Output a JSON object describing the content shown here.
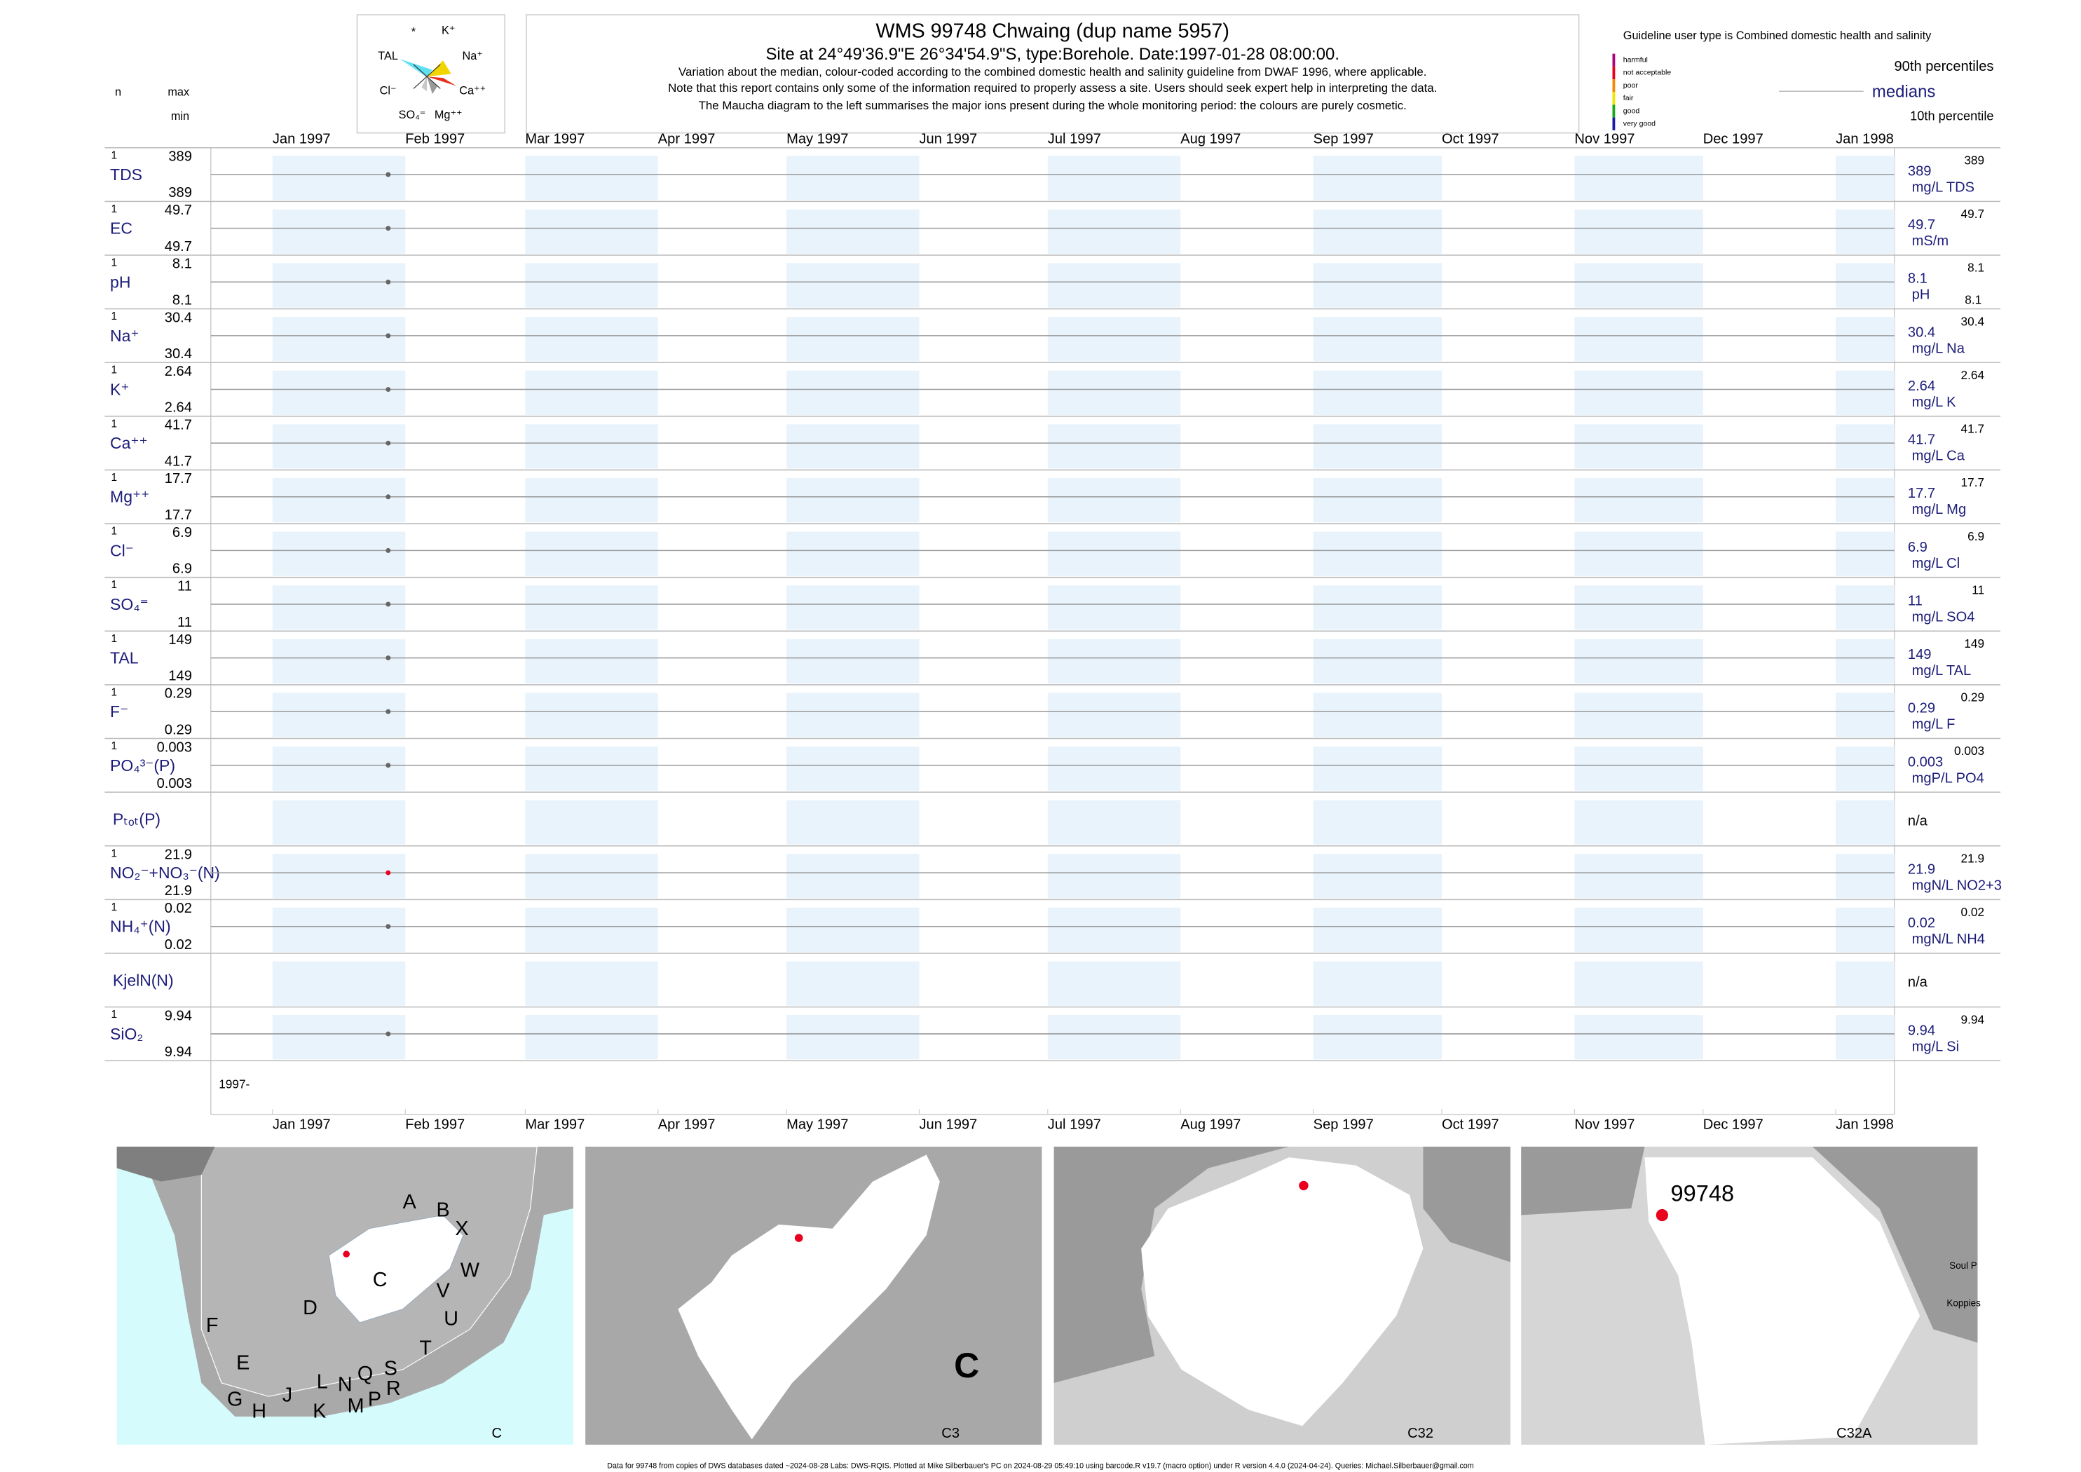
{
  "maucha": {
    "labels": [
      "*",
      "K⁺",
      "TAL",
      "Na⁺",
      "Cl⁻",
      "Ca⁺⁺",
      "SO₄⁼",
      "Mg⁺⁺"
    ]
  },
  "header": {
    "title": "WMS 99748  Chwaing (dup name 5957)",
    "subtitle": "Site at 24°49'36.9\"E 26°34'54.9\"S, type:Borehole. Date:1997-01-28 08:00:00.",
    "notes": [
      "Variation about the median,  colour-coded according to the combined domestic health and salinity guideline from DWAF 1996, where applicable.",
      "Note that this report contains only some of the information required to properly assess a site. Users should seek expert help in interpreting the data.",
      "The Maucha diagram to the left summarises the major ions present during the whole monitoring period: the colours are purely cosmetic."
    ]
  },
  "guideline": {
    "title": "Guideline user type is Combined domestic health and salinity",
    "classes": [
      {
        "label": "harmful",
        "color": "#b0007a"
      },
      {
        "label": "not acceptable",
        "color": "#e8001c"
      },
      {
        "label": "poor",
        "color": "#f58a00"
      },
      {
        "label": "fair",
        "color": "#f2e600"
      },
      {
        "label": "good",
        "color": "#19a81e"
      },
      {
        "label": "very good",
        "color": "#1a1aa8"
      }
    ]
  },
  "legend": {
    "p90": "90th percentiles",
    "median": "medians",
    "p10": "10th percentile"
  },
  "column_heads": {
    "n": "n",
    "max": "max",
    "min": "min"
  },
  "chart_data": {
    "type": "strip",
    "x": [
      "1997-01-28"
    ],
    "xticks": [
      {
        "value": "1997-01",
        "label": "Jan 1997"
      },
      {
        "value": "1997-02",
        "label": "Feb 1997"
      },
      {
        "value": "1997-03",
        "label": "Mar 1997"
      },
      {
        "value": "1997-04",
        "label": "Apr 1997"
      },
      {
        "value": "1997-05",
        "label": "May 1997"
      },
      {
        "value": "1997-06",
        "label": "Jun 1997"
      },
      {
        "value": "1997-07",
        "label": "Jul 1997"
      },
      {
        "value": "1997-08",
        "label": "Aug 1997"
      },
      {
        "value": "1997-09",
        "label": "Sep 1997"
      },
      {
        "value": "1997-10",
        "label": "Oct 1997"
      },
      {
        "value": "1997-11",
        "label": "Nov 1997"
      },
      {
        "value": "1997-12",
        "label": "Dec 1997"
      },
      {
        "value": "1998-01",
        "label": "Jan 1998"
      }
    ],
    "year_label": "1997-",
    "band_color": "#e8f3fc",
    "rows": [
      {
        "label": "TDS",
        "n": 1,
        "max": 389,
        "min": 389,
        "median": 389,
        "unit": "mg/L TDS",
        "p90": 389,
        "values": [
          389
        ],
        "color": "#666666"
      },
      {
        "label": "EC",
        "n": 1,
        "max": 49.7,
        "min": 49.7,
        "median": 49.7,
        "unit": "mS/m",
        "p90": 49.7,
        "values": [
          49.7
        ],
        "color": "#666666"
      },
      {
        "label": "pH",
        "n": 1,
        "max": 8.1,
        "min": 8.1,
        "median": 8.1,
        "unit": "pH",
        "p90": 8.1,
        "p10": 8.1,
        "values": [
          8.1
        ],
        "color": "#666666"
      },
      {
        "label": "Na⁺",
        "n": 1,
        "max": 30.4,
        "min": 30.4,
        "median": 30.4,
        "unit": "mg/L Na",
        "p90": 30.4,
        "values": [
          30.4
        ],
        "color": "#666666"
      },
      {
        "label": "K⁺",
        "n": 1,
        "max": 2.64,
        "min": 2.64,
        "median": 2.64,
        "unit": "mg/L K",
        "p90": 2.64,
        "values": [
          2.64
        ],
        "color": "#666666"
      },
      {
        "label": "Ca⁺⁺",
        "n": 1,
        "max": 41.7,
        "min": 41.7,
        "median": 41.7,
        "unit": "mg/L Ca",
        "p90": 41.7,
        "values": [
          41.7
        ],
        "color": "#666666"
      },
      {
        "label": "Mg⁺⁺",
        "n": 1,
        "max": 17.7,
        "min": 17.7,
        "median": 17.7,
        "unit": "mg/L Mg",
        "p90": 17.7,
        "values": [
          17.7
        ],
        "color": "#666666"
      },
      {
        "label": "Cl⁻",
        "n": 1,
        "max": 6.9,
        "min": 6.9,
        "median": 6.9,
        "unit": "mg/L Cl",
        "p90": 6.9,
        "values": [
          6.9
        ],
        "color": "#666666"
      },
      {
        "label": "SO₄⁼",
        "n": 1,
        "max": 11,
        "min": 11,
        "median": 11,
        "unit": "mg/L SO4",
        "p90": 11,
        "values": [
          11
        ],
        "color": "#666666"
      },
      {
        "label": "TAL",
        "n": 1,
        "max": 149,
        "min": 149,
        "median": 149,
        "unit": "mg/L TAL",
        "p90": 149,
        "values": [
          149
        ],
        "color": "#666666"
      },
      {
        "label": "F⁻",
        "n": 1,
        "max": 0.29,
        "min": 0.29,
        "median": 0.29,
        "unit": "mg/L F",
        "p90": 0.29,
        "values": [
          0.29
        ],
        "color": "#666666"
      },
      {
        "label": "PO₄³⁻(P)",
        "n": 1,
        "max": 0.003,
        "min": 0.003,
        "median": 0.003,
        "unit": "mgP/L PO4",
        "p90": 0.003,
        "values": [
          0.003
        ],
        "color": "#666666"
      },
      {
        "label": "Pₜₒₜ(P)",
        "status": "n/a",
        "values": [
          null
        ]
      },
      {
        "label": "NO₂⁻+NO₃⁻(N)",
        "n": 1,
        "max": 21.9,
        "min": 21.9,
        "median": 21.9,
        "unit": "mgN/L NO2+3",
        "p90": 21.9,
        "values": [
          21.9
        ],
        "color": "#e8001c"
      },
      {
        "label": "NH₄⁺(N)",
        "n": 1,
        "max": 0.02,
        "min": 0.02,
        "median": 0.02,
        "unit": "mgN/L NH4",
        "p90": 0.02,
        "values": [
          0.02
        ],
        "color": "#666666"
      },
      {
        "label": "KjelN(N)",
        "status": "n/a",
        "values": [
          null
        ]
      },
      {
        "label": "SiO₂",
        "n": 1,
        "max": 9.94,
        "min": 9.94,
        "median": 9.94,
        "unit": "mg/L Si",
        "p90": 9.94,
        "values": [
          9.94
        ],
        "color": "#666666"
      }
    ]
  },
  "maps": [
    {
      "caption": "C",
      "labels": [
        "A",
        "B",
        "X",
        "W",
        "C",
        "D",
        "V",
        "U",
        "T",
        "F",
        "E",
        "S",
        "R",
        "G",
        "H",
        "J",
        "K",
        "L",
        "N",
        "Q",
        "M",
        "P"
      ]
    },
    {
      "caption": "C3",
      "labels": [
        "C"
      ]
    },
    {
      "caption": "C32",
      "labels": []
    },
    {
      "caption": "C32A",
      "labels": [
        "99748",
        "Soul P",
        "Koppies"
      ]
    }
  ],
  "footer": "Data for 99748 from copies of DWS databases dated ~2024-08-28 Labs: DWS-RQIS. Plotted at Mike Silberbauer's PC on 2024-08-29 05:49:10 using barcode.R v19.7 (macro option) under R version 4.4.0 (2024-04-24). Queries: Michael.Silberbauer@gmail.com"
}
